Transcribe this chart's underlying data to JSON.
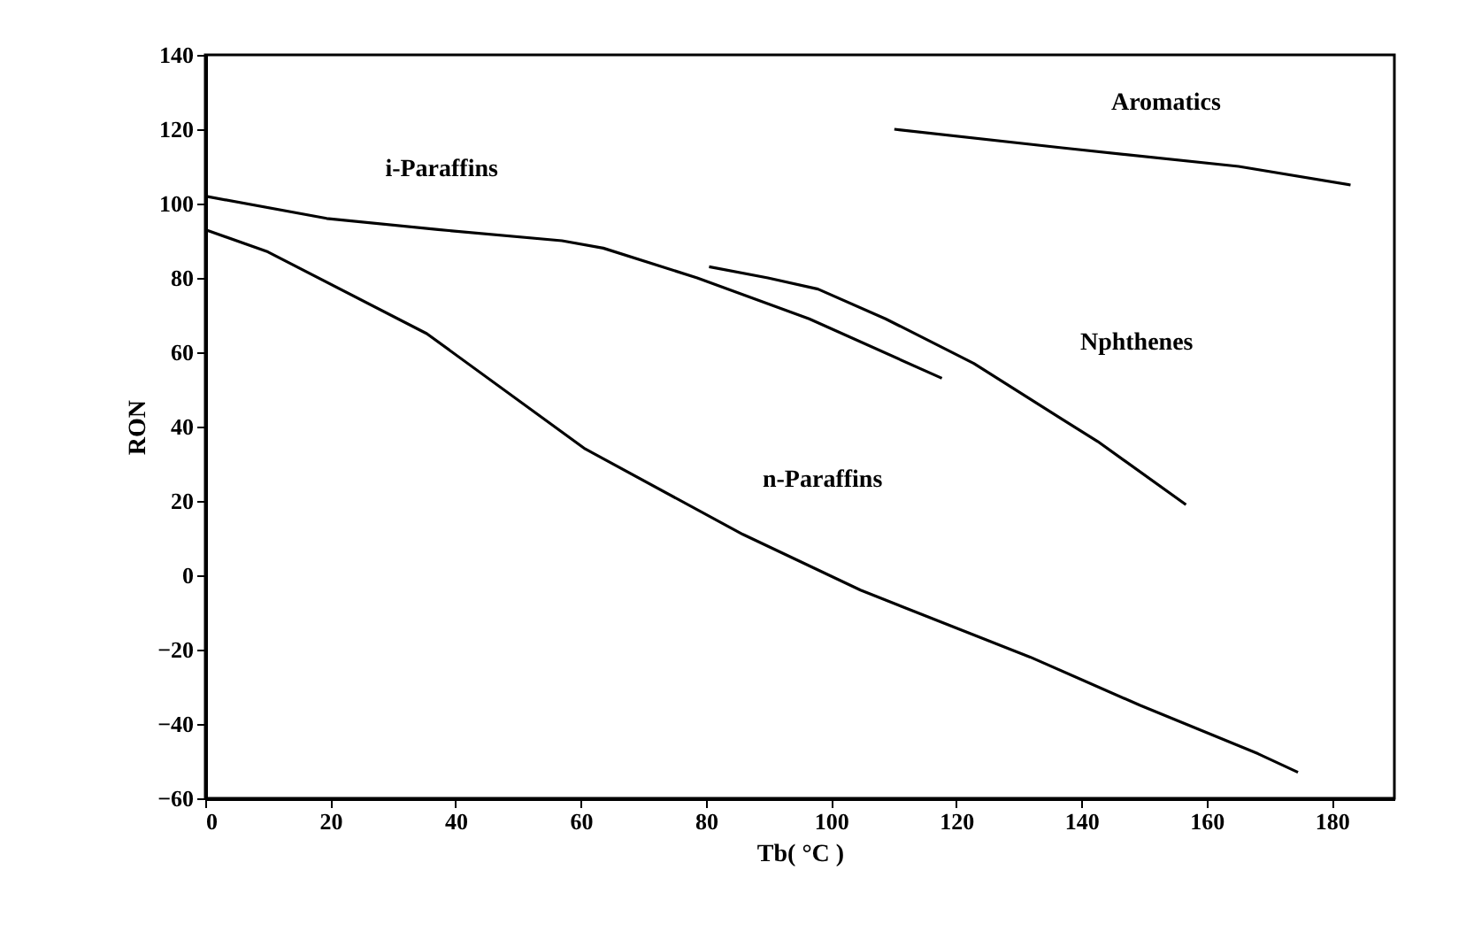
{
  "chart_data": {
    "type": "line",
    "xlabel": "Tb( °C )",
    "ylabel": "RON",
    "xlim": [
      0,
      190
    ],
    "ylim": [
      -60,
      140
    ],
    "xticks": [
      0,
      20,
      40,
      60,
      80,
      100,
      120,
      140,
      160,
      180
    ],
    "yticks": [
      -60,
      -40,
      -20,
      0,
      20,
      40,
      60,
      80,
      100,
      120,
      140
    ],
    "grid": false,
    "marker": "none",
    "line_style": "solid",
    "series": [
      {
        "name": "i-Paraffins",
        "color": "#000000",
        "x": [
          0,
          19.4,
          37.2,
          57,
          63.6,
          78.6,
          96.5,
          117.7
        ],
        "values": [
          102,
          96,
          93,
          90,
          88,
          80,
          69,
          53
        ]
      },
      {
        "name": "n-Paraffins",
        "color": "#000000",
        "x": [
          0,
          10,
          35.4,
          60.7,
          85.9,
          104.7,
          131.8,
          149.4,
          168.2,
          174.6
        ],
        "values": [
          93,
          87,
          65,
          34,
          11,
          -4,
          -22,
          -35,
          -48,
          -53
        ]
      },
      {
        "name": "Nphthenes",
        "color": "#000000",
        "x": [
          80.5,
          89.9,
          97.9,
          108.7,
          122.8,
          136.9,
          142.6,
          156.7
        ],
        "values": [
          83,
          80,
          77,
          69,
          57,
          42,
          36,
          19
        ]
      },
      {
        "name": "Aromatics",
        "color": "#000000",
        "x": [
          110.1,
          136.9,
          165.1,
          183
        ],
        "values": [
          120,
          115,
          110,
          105
        ]
      }
    ]
  }
}
